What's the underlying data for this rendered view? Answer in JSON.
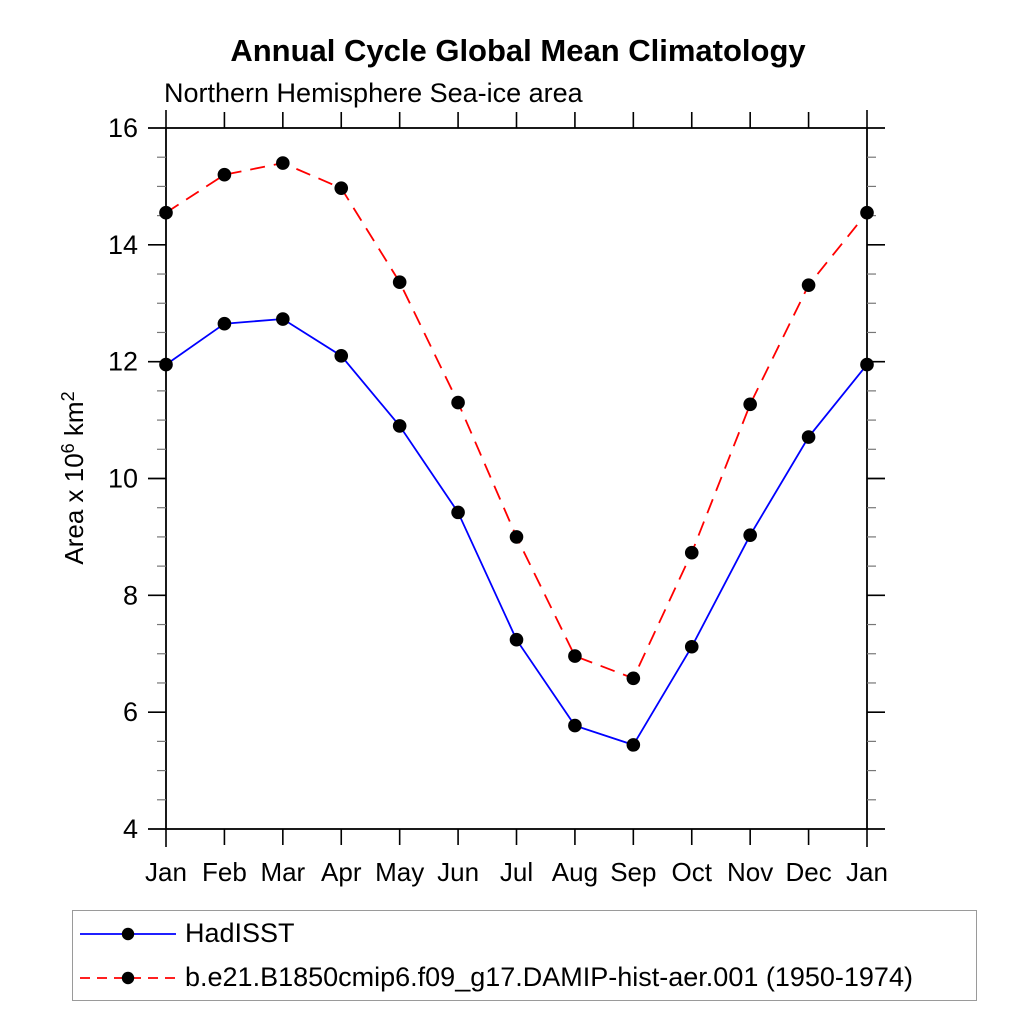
{
  "chart_data": {
    "type": "line",
    "title": "Annual Cycle Global Mean Climatology",
    "subtitle": "Northern Hemisphere Sea-ice area",
    "ylabel": "Area x 10^6 km^2",
    "ylabel_parts": [
      {
        "text": "Area x 10",
        "sup": false
      },
      {
        "text": "6",
        "sup": true
      },
      {
        "text": " km",
        "sup": false
      },
      {
        "text": "2",
        "sup": true
      }
    ],
    "categories": [
      "Jan",
      "Feb",
      "Mar",
      "Apr",
      "May",
      "Jun",
      "Jul",
      "Aug",
      "Sep",
      "Oct",
      "Nov",
      "Dec",
      "Jan"
    ],
    "ylim": [
      4,
      16
    ],
    "yticks": [
      4,
      6,
      8,
      10,
      12,
      14,
      16
    ],
    "y_minor_step": 0.5,
    "grid": false,
    "legend_position": "bottom-left-box",
    "axis_color": "#000000",
    "minor_tick_color": "#777777",
    "text_color": "#000000",
    "series": [
      {
        "name": "HadISST",
        "color": "#0000ff",
        "line_style": "solid",
        "marker": "circle",
        "marker_color": "#000000",
        "values": [
          11.95,
          12.65,
          12.73,
          12.1,
          10.9,
          9.42,
          7.24,
          5.77,
          5.44,
          7.12,
          9.03,
          10.71,
          11.95
        ]
      },
      {
        "name": "b.e21.B1850cmip6.f09_g17.DAMIP-hist-aer.001 (1950-1974)",
        "color": "#ff0000",
        "line_style": "dashed",
        "marker": "circle",
        "marker_color": "#000000",
        "values": [
          14.55,
          15.2,
          15.4,
          14.97,
          13.36,
          11.3,
          9.0,
          6.96,
          6.58,
          8.73,
          11.27,
          13.31,
          14.55
        ]
      }
    ]
  }
}
